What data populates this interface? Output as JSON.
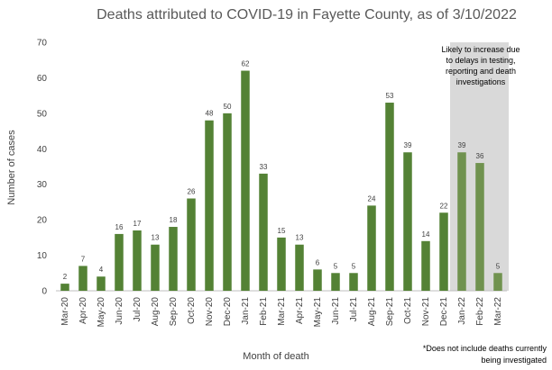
{
  "chart_data": {
    "type": "bar",
    "title": "Deaths attributed to COVID-19 in Fayette County, as of 3/10/2022",
    "xlabel": "Month of death",
    "ylabel": "Number of cases",
    "ylim": [
      0,
      70
    ],
    "yticks": [
      0,
      10,
      20,
      30,
      40,
      50,
      60,
      70
    ],
    "grid": false,
    "categories": [
      "Mar-20",
      "Apr-20",
      "May-20",
      "Jun-20",
      "Jul-20",
      "Aug-20",
      "Sep-20",
      "Oct-20",
      "Nov-20",
      "Dec-20",
      "Jan-21",
      "Feb-21",
      "Mar-21",
      "Apr-21",
      "May-21",
      "Jun-21",
      "Jul-21",
      "Aug-21",
      "Sep-21",
      "Oct-21",
      "Nov-21",
      "Dec-21",
      "Jan-22",
      "Feb-22",
      "Mar-22"
    ],
    "values": [
      2,
      7,
      4,
      16,
      17,
      13,
      18,
      26,
      48,
      50,
      62,
      33,
      15,
      13,
      6,
      5,
      5,
      24,
      53,
      39,
      14,
      22,
      39,
      36,
      5
    ],
    "highlight_categories": [
      "Jan-22",
      "Feb-22",
      "Mar-22"
    ],
    "highlight_note": [
      "Likely to increase due",
      "to delays in testing,",
      "reporting and death",
      "investigations"
    ],
    "footnote": [
      "*Does not include deaths currently",
      "being investigated"
    ],
    "colors": {
      "bar": "#548235",
      "bar_highlight": "#70924f",
      "shade": "#d9d9d9",
      "axis": "#bfbfbf"
    }
  }
}
